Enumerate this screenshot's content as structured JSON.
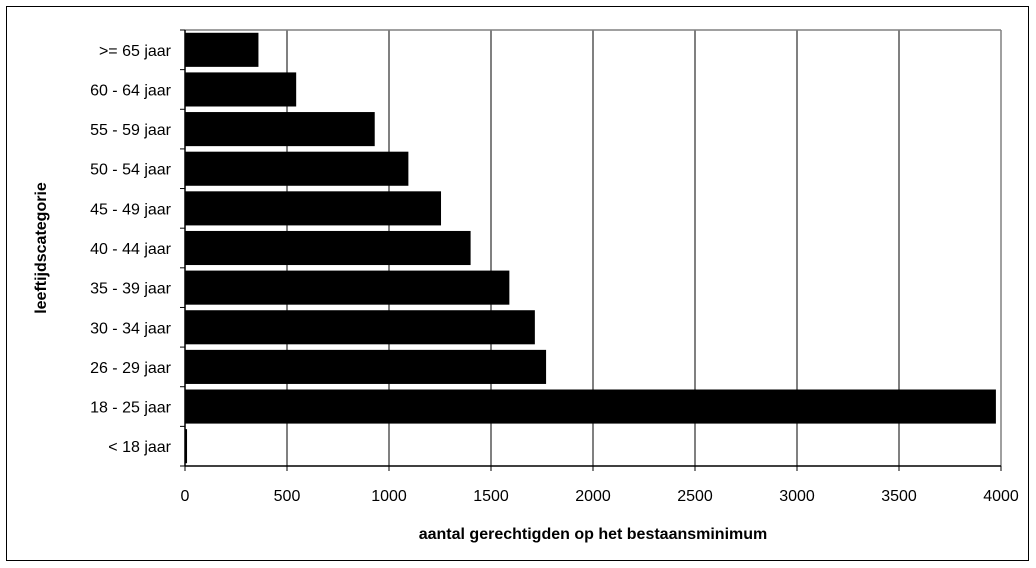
{
  "chart_data": {
    "type": "bar",
    "orientation": "horizontal",
    "categories": [
      "< 18 jaar",
      "18 - 25 jaar",
      "26 - 29 jaar",
      "30 - 34 jaar",
      "35 - 39 jaar",
      "40 - 44 jaar",
      "45 - 49 jaar",
      "50 - 54 jaar",
      "55 - 59 jaar",
      "60 - 64 jaar",
      ">= 65 jaar"
    ],
    "values": [
      10,
      3975,
      1770,
      1715,
      1590,
      1400,
      1255,
      1095,
      930,
      545,
      360
    ],
    "title": "",
    "xlabel": "aantal gerechtigden op het bestaansminimum",
    "ylabel": "leeftijdscategorie",
    "xlim": [
      0,
      4000
    ],
    "xticks": [
      0,
      500,
      1000,
      1500,
      2000,
      2500,
      3000,
      3500,
      4000
    ],
    "grid": "vertical",
    "legend": "none",
    "colors": {
      "bar": "#000000",
      "grid": "#000000",
      "plot_border": "#808080",
      "background": "#ffffff"
    }
  }
}
